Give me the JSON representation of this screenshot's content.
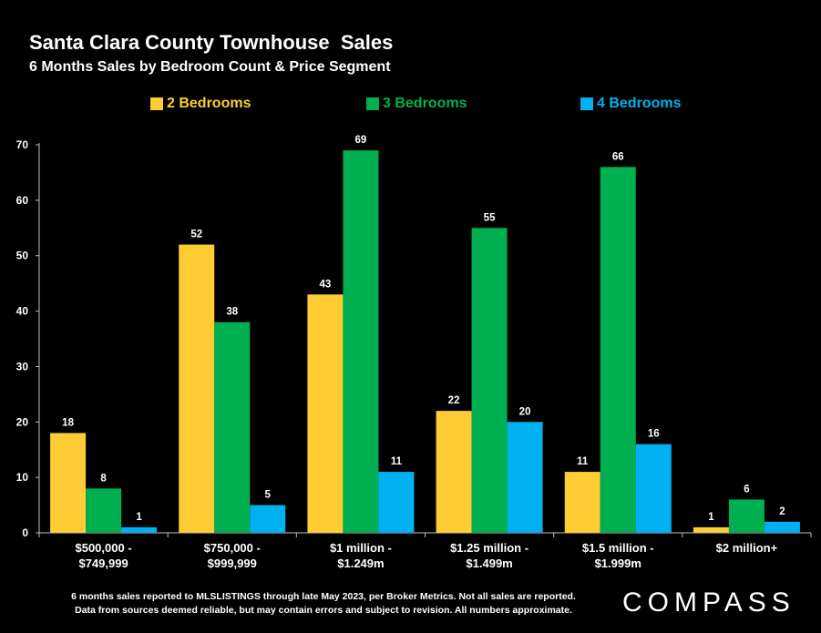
{
  "header": {
    "title": "Santa Clara County Townhouse  Sales",
    "subtitle": "6 Months Sales by Bedroom Count & Price Segment"
  },
  "legend": [
    {
      "label": "2 Bedrooms",
      "color": "#FFCC33"
    },
    {
      "label": "3 Bedrooms",
      "color": "#00B050"
    },
    {
      "label": "4 Bedrooms",
      "color": "#00B0F0"
    }
  ],
  "chart_data": {
    "type": "bar",
    "categories": [
      [
        "$500,000 -",
        "$749,999"
      ],
      [
        "$750,000 -",
        "$999,999"
      ],
      [
        "$1 million -",
        "$1.249m"
      ],
      [
        "$1.25 million -",
        "$1.499m"
      ],
      [
        "$1.5 million -",
        "$1.999m"
      ],
      [
        "$2 million+"
      ]
    ],
    "series": [
      {
        "name": "2 Bedrooms",
        "color": "#FFCC33",
        "values": [
          18,
          52,
          43,
          22,
          11,
          1
        ]
      },
      {
        "name": "3 Bedrooms",
        "color": "#00B050",
        "values": [
          8,
          38,
          69,
          55,
          66,
          6
        ]
      },
      {
        "name": "4 Bedrooms",
        "color": "#00B0F0",
        "values": [
          1,
          5,
          11,
          20,
          16,
          2
        ]
      }
    ],
    "ylim": [
      0,
      70
    ],
    "yticks": [
      0,
      10,
      20,
      30,
      40,
      50,
      60,
      70
    ],
    "grid": false,
    "legend_position": "top"
  },
  "footnote": {
    "line1": "6 months sales reported to MLSLISTINGS through late May 2023, per Broker Metrics. Not all sales are reported.",
    "line2": "Data from sources deemed reliable, but may contain errors and subject to revision. All numbers approximate."
  },
  "brand": "COMPASS"
}
